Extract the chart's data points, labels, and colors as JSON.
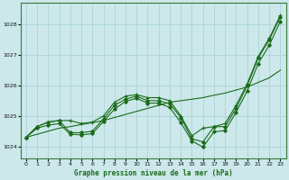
{
  "background_color": "#cce8ea",
  "grid_color": "#aad4d6",
  "line_color": "#1a6b1a",
  "title": "Graphe pression niveau de la mer (hPa)",
  "xlim": [
    -0.5,
    23.5
  ],
  "ylim": [
    1023.6,
    1028.7
  ],
  "yticks": [
    1024,
    1025,
    1026,
    1027,
    1028
  ],
  "xticks": [
    0,
    1,
    2,
    3,
    4,
    5,
    6,
    7,
    8,
    9,
    10,
    11,
    12,
    13,
    14,
    15,
    16,
    17,
    18,
    19,
    20,
    21,
    22,
    23
  ],
  "s1": [
    1024.3,
    1024.65,
    1024.8,
    1024.85,
    1024.85,
    1024.75,
    1024.8,
    1025.0,
    1025.45,
    1025.65,
    1025.7,
    1025.6,
    1025.6,
    1025.5,
    1025.0,
    1024.35,
    1024.6,
    1024.65,
    1024.75,
    1025.35,
    1026.05,
    1026.95,
    1027.55,
    1028.3
  ],
  "s2": [
    1024.3,
    1024.65,
    1024.8,
    1024.85,
    1024.45,
    1024.45,
    1024.5,
    1024.9,
    1025.35,
    1025.55,
    1025.65,
    1025.5,
    1025.5,
    1025.4,
    1024.95,
    1024.25,
    1024.15,
    1024.65,
    1024.65,
    1025.25,
    1026.0,
    1026.9,
    1027.5,
    1028.25
  ],
  "s3_straight": [
    1024.3,
    1024.4,
    1024.5,
    1024.6,
    1024.65,
    1024.72,
    1024.78,
    1024.85,
    1024.95,
    1025.05,
    1025.15,
    1025.25,
    1025.35,
    1025.45,
    1025.5,
    1025.55,
    1025.6,
    1025.68,
    1025.75,
    1025.85,
    1025.95,
    1026.1,
    1026.25,
    1026.5
  ],
  "s4": [
    1024.3,
    1024.6,
    1024.7,
    1024.75,
    1024.4,
    1024.38,
    1024.42,
    1024.82,
    1025.22,
    1025.48,
    1025.58,
    1025.42,
    1025.42,
    1025.28,
    1024.78,
    1024.18,
    1023.98,
    1024.48,
    1024.52,
    1025.12,
    1025.82,
    1026.72,
    1027.32,
    1028.1
  ]
}
